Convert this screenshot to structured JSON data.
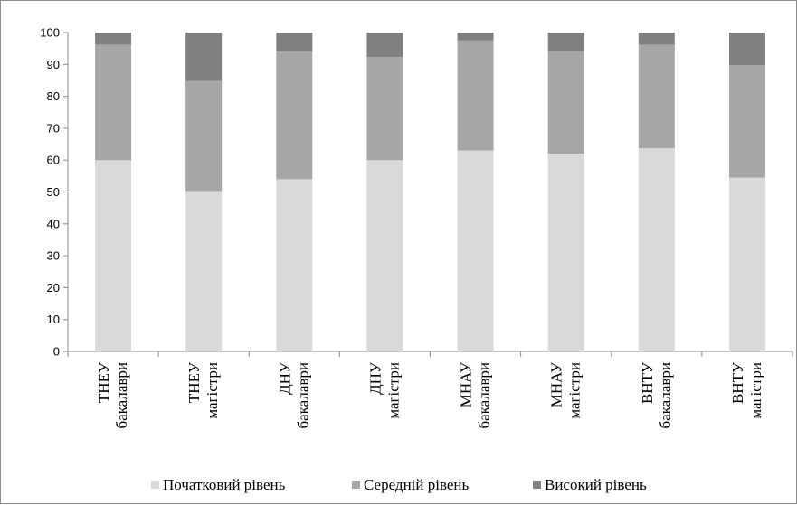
{
  "chart_data": {
    "type": "bar",
    "stacked": true,
    "categories": [
      [
        "ТНЕУ",
        "бакалаври"
      ],
      [
        "ТНЕУ",
        "магістри"
      ],
      [
        "ДНУ",
        "бакалаври"
      ],
      [
        "ДНУ",
        "магістри"
      ],
      [
        "МНАУ",
        "бакалаври"
      ],
      [
        "МНАУ",
        "магістри"
      ],
      [
        "ВНТУ",
        "бакалаври"
      ],
      [
        "ВНТУ",
        "магістри"
      ]
    ],
    "series": [
      {
        "name": "Початковий рівень",
        "color": "#d9d9d9",
        "values": [
          60,
          50.3,
          54,
          60,
          63,
          62,
          63.7,
          54.5
        ]
      },
      {
        "name": "Середній рівень",
        "color": "#a6a6a6",
        "values": [
          36.2,
          34.5,
          40,
          32.3,
          34.5,
          32.2,
          32.5,
          35.3
        ]
      },
      {
        "name": "Високий рівень",
        "color": "#808080",
        "values": [
          3.8,
          15.2,
          6,
          7.7,
          2.5,
          5.8,
          3.8,
          10.2
        ]
      }
    ],
    "ylim": [
      0,
      100
    ],
    "yticks": [
      "0",
      "10",
      "20",
      "30",
      "40",
      "50",
      "60",
      "70",
      "80",
      "90",
      "100"
    ],
    "grid": false,
    "legend_position": "bottom"
  }
}
